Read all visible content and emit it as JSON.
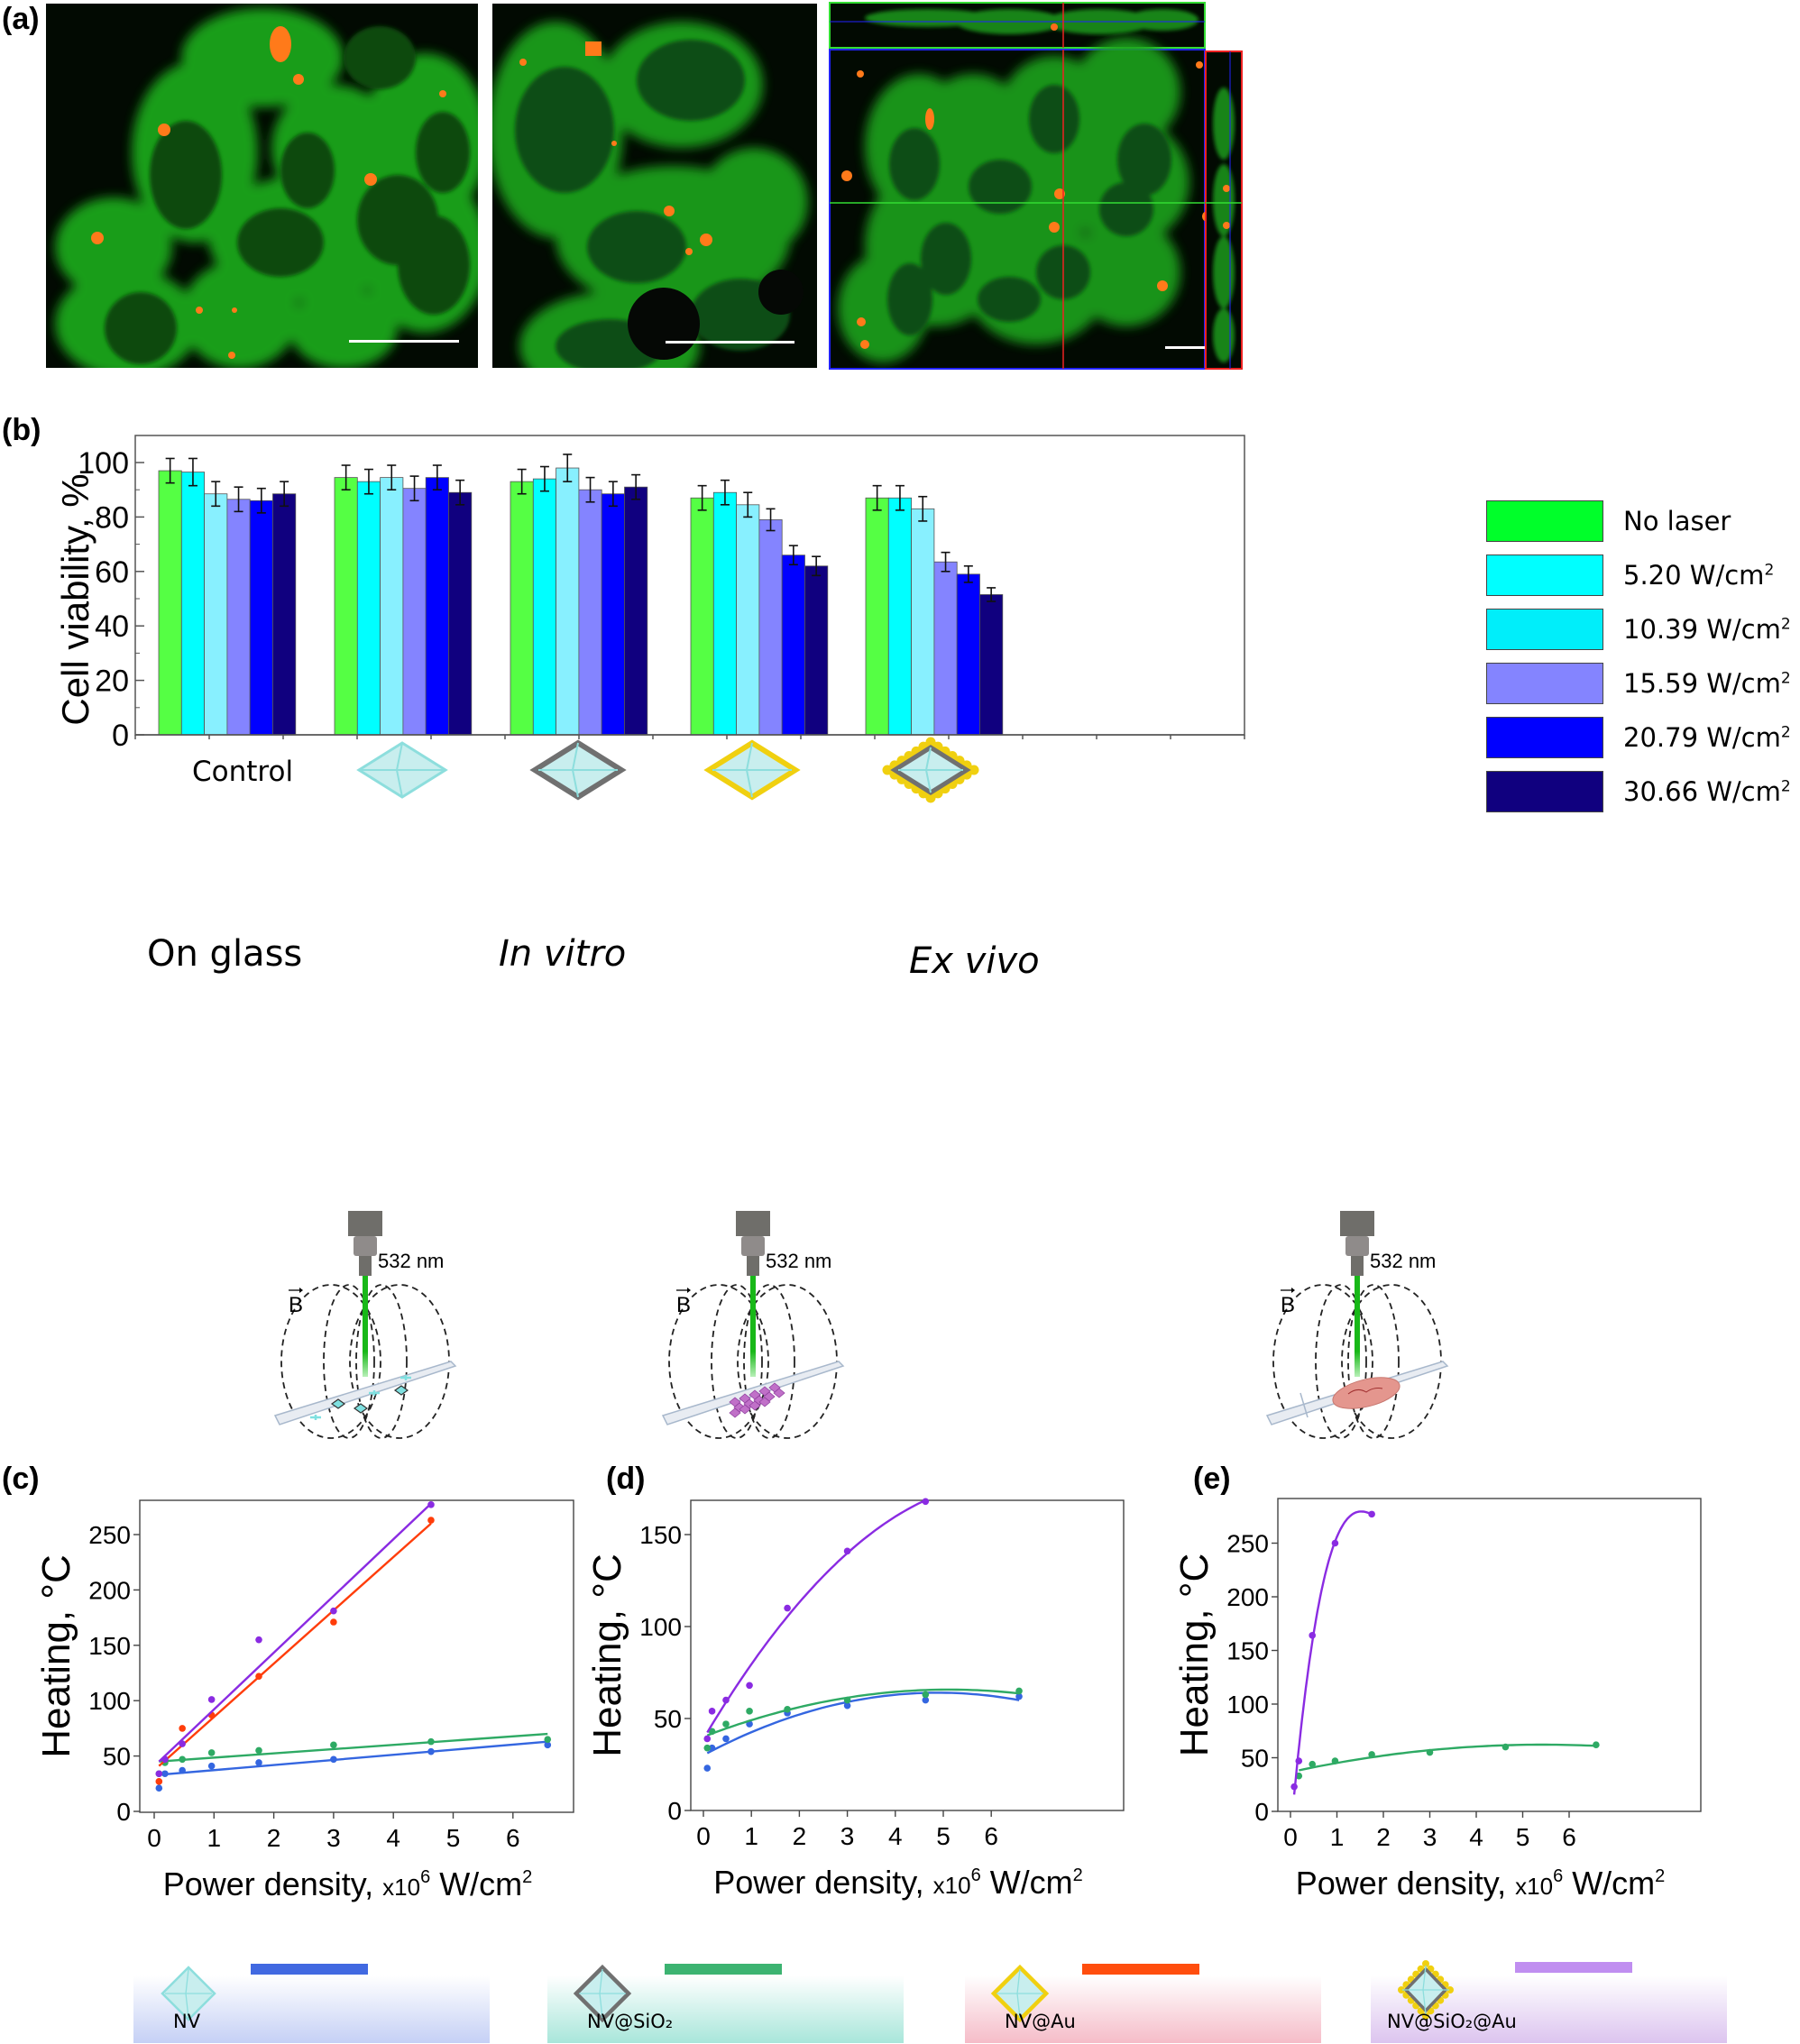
{
  "panels": {
    "a": {
      "label": "(a)"
    },
    "b": {
      "label": "(b)"
    },
    "c": {
      "label": "(c)"
    },
    "d": {
      "label": "(d)"
    },
    "e": {
      "label": "(e)"
    }
  },
  "micrographs": [
    {
      "name": "confocal-image-1",
      "description": "Green-stained cells with orange nanoparticle aggregates"
    },
    {
      "name": "confocal-image-2",
      "description": "Green-stained cells with orange nanoparticle aggregates"
    },
    {
      "name": "confocal-image-3",
      "description": "Orthogonal view of cell cluster with XZ and YZ projections"
    }
  ],
  "schematics": [
    {
      "scene": "On glass",
      "italic": false,
      "wavelength": "532 nm",
      "field": "B"
    },
    {
      "scene": "In vitro",
      "italic": true,
      "wavelength": "532 nm",
      "field": "B"
    },
    {
      "scene": "Ex vivo",
      "italic": true,
      "wavelength": "532 nm",
      "field": "B"
    }
  ],
  "bottom_legend": [
    {
      "label": "NV",
      "line_color": "#4169E1",
      "bg_color": "#c5d0f5"
    },
    {
      "label": "NV@SiO₂",
      "line_color": "#3CB371",
      "bg_color": "#a8e6da"
    },
    {
      "label": "NV@Au",
      "line_color": "#FF4D0D",
      "bg_color": "#f5bcc8"
    },
    {
      "label": "NV@SiO₂@Au",
      "line_color": "#C08EF0",
      "bg_color": "#dcc4ef"
    }
  ],
  "colors": {
    "no_laser": "#55FF44",
    "p520": "#00FFFF",
    "p1039": "#88F0FF",
    "p1559": "#8484FF",
    "p2079": "#0000FF",
    "p3066": "#10007F",
    "nv_blue": "#3466E0",
    "sio2_green": "#2EAA64",
    "au_red": "#FF3D0A",
    "sio2au_purple": "#8A2BE2"
  },
  "chart_data": [
    {
      "id": "b",
      "type": "bar",
      "title": "",
      "xlabel": "",
      "ylabel": "Cell viability, %",
      "ylim": [
        0,
        110
      ],
      "yticks": [
        0,
        20,
        40,
        60,
        80,
        100
      ],
      "categories": [
        "Control",
        "NV",
        "NV@SiO₂",
        "NV@Au",
        "NV@SiO₂@Au"
      ],
      "category_display": [
        "Control",
        "[NV diamond icon]",
        "[NV@SiO₂ diamond icon]",
        "[NV@Au diamond icon]",
        "[NV@SiO₂@Au diamond icon]"
      ],
      "legend_position": "right",
      "series": [
        {
          "name": "No laser",
          "color": "#55FF44",
          "values": [
            97,
            94.5,
            93,
            87,
            87
          ],
          "errors": [
            4.5,
            4.5,
            4.5,
            4.5,
            4.5
          ]
        },
        {
          "name": "5.20 W/cm²",
          "color": "#00FFFF",
          "values": [
            96.5,
            93,
            94,
            89,
            87
          ],
          "errors": [
            5,
            4.5,
            4.5,
            4.5,
            4.5
          ]
        },
        {
          "name": "10.39 W/cm²",
          "color": "#88F0FF",
          "values": [
            88.5,
            94.5,
            98,
            84.5,
            83
          ],
          "errors": [
            4.5,
            4.5,
            5,
            4.5,
            4.5
          ]
        },
        {
          "name": "15.59 W/cm²",
          "color": "#8484FF",
          "values": [
            86.5,
            90.5,
            90,
            79,
            63.5
          ],
          "errors": [
            4.5,
            4.5,
            4.5,
            4,
            3.5
          ]
        },
        {
          "name": "20.79 W/cm²",
          "color": "#0000FF",
          "values": [
            86,
            94.5,
            88.5,
            66,
            59
          ],
          "errors": [
            4.5,
            4.5,
            4.5,
            3.5,
            3
          ]
        },
        {
          "name": "30.66 W/cm²",
          "color": "#10007F",
          "values": [
            88.5,
            89,
            91,
            62,
            51.5
          ],
          "errors": [
            4.5,
            4.5,
            4.5,
            3.5,
            2.5
          ]
        }
      ]
    },
    {
      "id": "c",
      "type": "scatter",
      "scene": "On glass",
      "xlabel": "Power density, x10⁶ W/cm²",
      "ylabel": "Heating, °C",
      "xlim": [
        -0.25,
        6.9
      ],
      "ylim": [
        0,
        290
      ],
      "xticks": [
        0,
        1,
        2,
        3,
        4,
        5,
        6
      ],
      "yticks": [
        0,
        50,
        100,
        150,
        200,
        250
      ],
      "grid": false,
      "series": [
        {
          "name": "NV",
          "color": "#3466E0",
          "x": [
            0.08,
            0.18,
            0.47,
            0.96,
            1.75,
            3.0,
            4.63,
            6.58
          ],
          "y": [
            21,
            34,
            37,
            41,
            44,
            47,
            54,
            60
          ],
          "fit": "linear",
          "fit_range": [
            0.08,
            6.58
          ],
          "fit_endpoints": [
            33,
            63
          ]
        },
        {
          "name": "NV@SiO₂",
          "color": "#2EAA64",
          "x": [
            0.08,
            0.18,
            0.47,
            0.96,
            1.75,
            3.0,
            4.63,
            6.58
          ],
          "y": [
            34,
            44,
            47,
            53,
            55,
            60,
            63,
            65
          ],
          "fit": "linear",
          "fit_range": [
            0.08,
            6.58
          ],
          "fit_endpoints": [
            45,
            70
          ]
        },
        {
          "name": "NV@Au",
          "color": "#FF3D0A",
          "x": [
            0.08,
            0.18,
            0.47,
            0.96,
            1.75,
            3.0,
            4.63
          ],
          "y": [
            27,
            47,
            75,
            87,
            122,
            171,
            263
          ],
          "fit": "linear",
          "fit_range": [
            0.08,
            4.63
          ],
          "fit_endpoints": [
            41,
            260
          ]
        },
        {
          "name": "NV@SiO₂@Au",
          "color": "#8A2BE2",
          "x": [
            0.08,
            0.18,
            0.47,
            0.96,
            1.75,
            3.0,
            4.63
          ],
          "y": [
            34,
            47,
            61,
            101,
            155,
            181,
            277
          ],
          "fit": "linear",
          "fit_range": [
            0.08,
            4.63
          ],
          "fit_endpoints": [
            45,
            278
          ]
        }
      ]
    },
    {
      "id": "d",
      "type": "scatter",
      "scene": "In vitro",
      "xlabel": "Power density, x10⁶ W/cm²",
      "ylabel": "Heating, °C",
      "xlim": [
        -0.25,
        6.9
      ],
      "ylim": [
        0,
        175
      ],
      "xticks": [
        0,
        1,
        2,
        3,
        4,
        5,
        6
      ],
      "yticks": [
        0,
        50,
        100,
        150
      ],
      "grid": false,
      "series": [
        {
          "name": "NV",
          "color": "#3466E0",
          "x": [
            0.08,
            0.18,
            0.47,
            0.96,
            1.75,
            3.0,
            4.63,
            6.58
          ],
          "y": [
            23,
            34,
            39,
            47,
            53,
            57,
            60,
            62
          ],
          "fit": "quadratic"
        },
        {
          "name": "NV@SiO₂",
          "color": "#2EAA64",
          "x": [
            0.08,
            0.18,
            0.47,
            0.96,
            1.75,
            3.0,
            4.63,
            6.58
          ],
          "y": [
            34,
            43,
            47,
            54,
            55,
            60,
            63,
            65
          ],
          "fit": "quadratic"
        },
        {
          "name": "NV@SiO₂@Au",
          "color": "#8A2BE2",
          "x": [
            0.08,
            0.18,
            0.47,
            0.96,
            1.75,
            3.0,
            4.63
          ],
          "y": [
            39,
            54,
            60,
            68,
            110,
            141,
            168
          ],
          "fit": "quadratic"
        }
      ]
    },
    {
      "id": "e",
      "type": "scatter",
      "scene": "Ex vivo",
      "xlabel": "Power density, x10⁶ W/cm²",
      "ylabel": "Heating, °C",
      "xlim": [
        -0.25,
        6.9
      ],
      "ylim": [
        0,
        300
      ],
      "xticks": [
        0,
        1,
        2,
        3,
        4,
        5,
        6
      ],
      "yticks": [
        0,
        50,
        100,
        150,
        200,
        250
      ],
      "grid": false,
      "series": [
        {
          "name": "NV@SiO₂",
          "color": "#2EAA64",
          "x": [
            0.18,
            0.47,
            0.96,
            1.75,
            3.0,
            4.63,
            6.58
          ],
          "y": [
            33,
            44,
            47,
            53,
            55,
            60,
            62
          ],
          "fit": "quadratic"
        },
        {
          "name": "NV@SiO₂@Au",
          "color": "#8A2BE2",
          "x": [
            0.08,
            0.18,
            0.47,
            0.96,
            1.75
          ],
          "y": [
            23,
            47,
            164,
            250,
            277
          ],
          "fit": "quadratic",
          "fit_peak": [
            1.42,
            290
          ]
        }
      ]
    }
  ],
  "axes_text": {
    "b_ylabel": "Cell viability, %",
    "heating_ylabel": "Heating, °C",
    "power_xlabel_main": "Power density,",
    "power_xlabel_unit_pre": "x10",
    "power_xlabel_exp": "6",
    "power_xlabel_unit_post": " W/cm",
    "power_xlabel_sq": "2",
    "control_label": "Control"
  }
}
